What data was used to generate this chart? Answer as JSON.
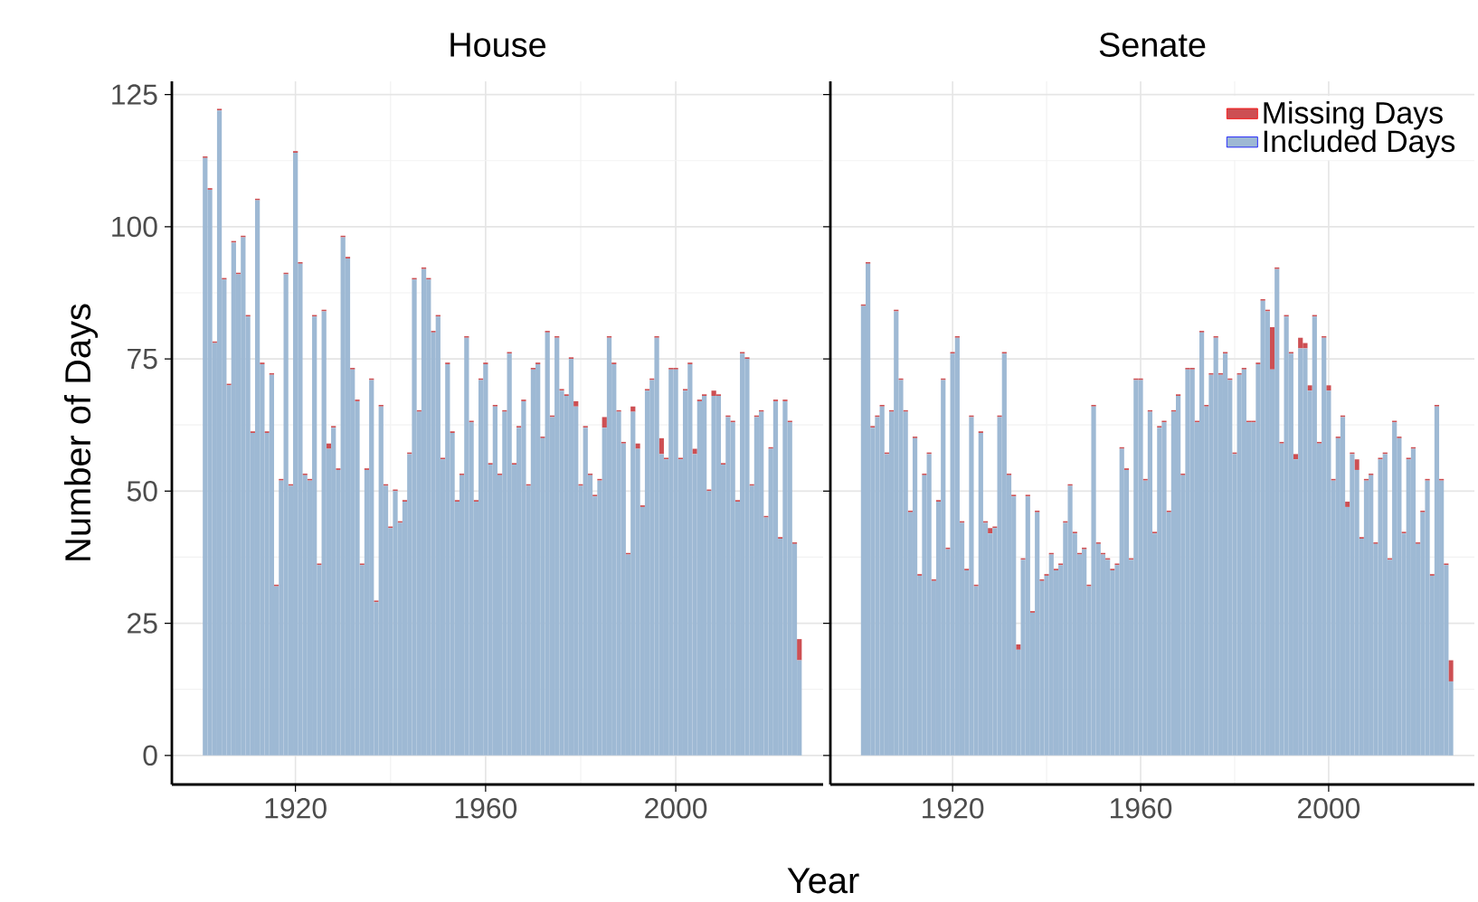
{
  "chart_data": [
    {
      "type": "bar",
      "title": "House",
      "xlabel": "Year",
      "ylabel": "Number of Days",
      "stacked": true,
      "grid": true,
      "x": [
        1901,
        1902,
        1903,
        1904,
        1905,
        1906,
        1907,
        1908,
        1909,
        1910,
        1911,
        1912,
        1913,
        1914,
        1915,
        1916,
        1917,
        1918,
        1919,
        1920,
        1921,
        1922,
        1923,
        1924,
        1925,
        1926,
        1927,
        1928,
        1929,
        1930,
        1931,
        1932,
        1933,
        1934,
        1935,
        1936,
        1937,
        1938,
        1939,
        1940,
        1941,
        1942,
        1943,
        1944,
        1945,
        1946,
        1947,
        1948,
        1949,
        1950,
        1951,
        1952,
        1953,
        1954,
        1955,
        1956,
        1957,
        1958,
        1959,
        1960,
        1961,
        1962,
        1963,
        1964,
        1965,
        1966,
        1967,
        1968,
        1969,
        1970,
        1971,
        1972,
        1973,
        1974,
        1975,
        1976,
        1977,
        1978,
        1979,
        1980,
        1981,
        1982,
        1983,
        1984,
        1985,
        1986,
        1987,
        1988,
        1989,
        1990,
        1991,
        1992,
        1993,
        1994,
        1995,
        1996,
        1997,
        1998,
        1999,
        2000,
        2001,
        2002,
        2003,
        2004,
        2005,
        2006,
        2007,
        2008,
        2009,
        2010,
        2011,
        2012,
        2013,
        2014,
        2015,
        2016,
        2017,
        2018,
        2019,
        2020,
        2021,
        2022,
        2023,
        2024,
        2025,
        2026
      ],
      "series": [
        {
          "color": "#9eb9d4",
          "values": [
            113,
            107,
            78,
            122,
            90,
            70,
            97,
            91,
            98,
            83,
            61,
            105,
            74,
            61,
            72,
            32,
            52,
            91,
            51,
            114,
            93,
            53,
            52,
            83,
            36,
            84,
            58,
            62,
            54,
            98,
            94,
            73,
            67,
            36,
            54,
            71,
            29,
            66,
            51,
            43,
            50,
            44,
            48,
            57,
            90,
            65,
            92,
            90,
            80,
            83,
            56,
            74,
            61,
            48,
            53,
            79,
            63,
            48,
            71,
            74,
            55,
            66,
            53,
            65,
            76,
            55,
            62,
            67,
            51,
            73,
            74,
            60,
            80,
            64,
            79,
            69,
            68,
            75,
            66,
            51,
            62,
            53,
            49,
            52,
            62,
            79,
            74,
            65,
            59,
            38,
            65,
            58,
            47,
            69,
            71,
            79,
            57,
            56,
            73,
            73,
            56,
            69,
            74,
            57,
            67,
            68,
            50,
            68,
            68,
            55,
            64,
            63,
            48,
            76,
            75,
            51,
            64,
            65,
            45,
            58,
            67,
            41,
            67,
            63,
            40,
            18
          ]
        },
        {
          "color": "#cd4f53",
          "values": [
            0.3,
            0.3,
            0.3,
            0.3,
            0.3,
            0.3,
            0.3,
            0.3,
            0.3,
            0.3,
            0.3,
            0.3,
            0.3,
            0.3,
            0.3,
            0.3,
            0.3,
            0.3,
            0.3,
            0.3,
            0.3,
            0.3,
            0.3,
            0.3,
            0.3,
            0.3,
            1,
            0.3,
            0.3,
            0.3,
            0.3,
            0.3,
            0.3,
            0.3,
            0.3,
            0.3,
            0.3,
            0.3,
            0.3,
            0.3,
            0.3,
            0.3,
            0.3,
            0.3,
            0.3,
            0.3,
            0.3,
            0.3,
            0.3,
            0.3,
            0.3,
            0.3,
            0.3,
            0.3,
            0.3,
            0.3,
            0.3,
            0.3,
            0.3,
            0.3,
            0.3,
            0.3,
            0.3,
            0.3,
            0.3,
            0.3,
            0.3,
            0.3,
            0.3,
            0.3,
            0.3,
            0.3,
            0.3,
            0.3,
            0.3,
            0.3,
            0.3,
            0.3,
            1,
            0.3,
            0.3,
            0.3,
            0.3,
            0.3,
            2,
            0.3,
            0.3,
            0.3,
            0.3,
            0.3,
            1,
            1,
            0.3,
            0.3,
            0.3,
            0.3,
            3,
            0.3,
            0.3,
            0.3,
            0.3,
            0.3,
            0.3,
            1,
            0.3,
            0.3,
            0.3,
            1,
            0.3,
            0.3,
            0.3,
            0.3,
            0.3,
            0.3,
            0.3,
            0.3,
            0.3,
            0.3,
            0.3,
            0.3,
            0.3,
            0.3,
            0.3,
            0.3,
            0.3,
            4
          ]
        }
      ],
      "xlim": [
        1894,
        2031
      ],
      "ylim": [
        -5.5,
        127.5
      ],
      "xticks": [
        1920,
        1960,
        2000
      ],
      "yticks": [
        0,
        25,
        50,
        75,
        100,
        125
      ]
    },
    {
      "type": "bar",
      "title": "Senate",
      "stacked": true,
      "grid": true,
      "tick_labels": "x",
      "legend": "top right",
      "x": [
        1901,
        1902,
        1903,
        1904,
        1905,
        1906,
        1907,
        1908,
        1909,
        1910,
        1911,
        1912,
        1913,
        1914,
        1915,
        1916,
        1917,
        1918,
        1919,
        1920,
        1921,
        1922,
        1923,
        1924,
        1925,
        1926,
        1927,
        1928,
        1929,
        1930,
        1931,
        1932,
        1933,
        1934,
        1935,
        1936,
        1937,
        1938,
        1939,
        1940,
        1941,
        1942,
        1943,
        1944,
        1945,
        1946,
        1947,
        1948,
        1949,
        1950,
        1951,
        1952,
        1953,
        1954,
        1955,
        1956,
        1957,
        1958,
        1959,
        1960,
        1961,
        1962,
        1963,
        1964,
        1965,
        1966,
        1967,
        1968,
        1969,
        1970,
        1971,
        1972,
        1973,
        1974,
        1975,
        1976,
        1977,
        1978,
        1979,
        1980,
        1981,
        1982,
        1983,
        1984,
        1985,
        1986,
        1987,
        1988,
        1989,
        1990,
        1991,
        1992,
        1993,
        1994,
        1995,
        1996,
        1997,
        1998,
        1999,
        2000,
        2001,
        2002,
        2003,
        2004,
        2005,
        2006,
        2007,
        2008,
        2009,
        2010,
        2011,
        2012,
        2013,
        2014,
        2015,
        2016,
        2017,
        2018,
        2019,
        2020,
        2021,
        2022,
        2023,
        2024,
        2025,
        2026
      ],
      "series": [
        {
          "name": "Included Days",
          "color": "#9eb9d4",
          "values": [
            85,
            93,
            62,
            64,
            66,
            57,
            65,
            84,
            71,
            65,
            46,
            60,
            34,
            53,
            57,
            33,
            48,
            71,
            39,
            76,
            79,
            44,
            35,
            64,
            32,
            61,
            44,
            42,
            43,
            64,
            76,
            53,
            49,
            20,
            37,
            49,
            27,
            46,
            33,
            34,
            38,
            35,
            36,
            44,
            51,
            42,
            38,
            39,
            32,
            66,
            40,
            38,
            37,
            35,
            36,
            58,
            54,
            37,
            71,
            71,
            52,
            65,
            42,
            62,
            63,
            46,
            65,
            68,
            53,
            73,
            73,
            63,
            80,
            66,
            72,
            79,
            72,
            76,
            71,
            57,
            72,
            73,
            63,
            63,
            74,
            86,
            84,
            73,
            92,
            59,
            83,
            76,
            56,
            77,
            77,
            69,
            83,
            59,
            79,
            69,
            52,
            60,
            64,
            47,
            57,
            54,
            41,
            52,
            53,
            40,
            56,
            57,
            37,
            63,
            60,
            42,
            56,
            58,
            40,
            46,
            52,
            34,
            66,
            52,
            36,
            14
          ]
        },
        {
          "name": "Missing Days",
          "color": "#cd4f53",
          "values": [
            0.3,
            0.3,
            0.3,
            0.3,
            0.3,
            0.3,
            0.3,
            0.3,
            0.3,
            0.3,
            0.3,
            0.3,
            0.3,
            0.3,
            0.3,
            0.3,
            0.3,
            0.3,
            0.3,
            0.3,
            0.3,
            0.3,
            0.3,
            0.3,
            0.3,
            0.3,
            0.3,
            1,
            0.3,
            0.3,
            0.3,
            0.3,
            0.3,
            1,
            0.3,
            0.3,
            0.3,
            0.3,
            0.3,
            0.3,
            0.3,
            0.3,
            0.3,
            0.3,
            0.3,
            0.3,
            0.3,
            0.3,
            0.3,
            0.3,
            0.3,
            0.3,
            0.3,
            0.3,
            0.3,
            0.3,
            0.3,
            0.3,
            0.3,
            0.3,
            0.3,
            0.3,
            0.3,
            0.3,
            0.3,
            0.3,
            0.3,
            0.3,
            0.3,
            0.3,
            0.3,
            0.3,
            0.3,
            0.3,
            0.3,
            0.3,
            0.3,
            0.3,
            0.3,
            0.3,
            0.3,
            0.3,
            0.3,
            0.3,
            0.3,
            0.3,
            0.3,
            8,
            0.3,
            0.3,
            0.3,
            0.3,
            1,
            2,
            1,
            1,
            0.3,
            0.3,
            0.3,
            1,
            0.3,
            0.3,
            0.3,
            1,
            0.3,
            2,
            0.3,
            0.3,
            0.3,
            0.3,
            0.3,
            0.3,
            0.3,
            0.3,
            0.3,
            0.3,
            0.3,
            0.3,
            0.3,
            0.3,
            0.3,
            0.3,
            0.3,
            0.3,
            0.3,
            4
          ]
        }
      ],
      "xlim": [
        1894,
        2031
      ],
      "ylim": [
        -5.5,
        127.5
      ],
      "xticks": [
        1920,
        1960,
        2000
      ],
      "yticks": [
        0,
        25,
        50,
        75,
        100,
        125
      ]
    }
  ]
}
